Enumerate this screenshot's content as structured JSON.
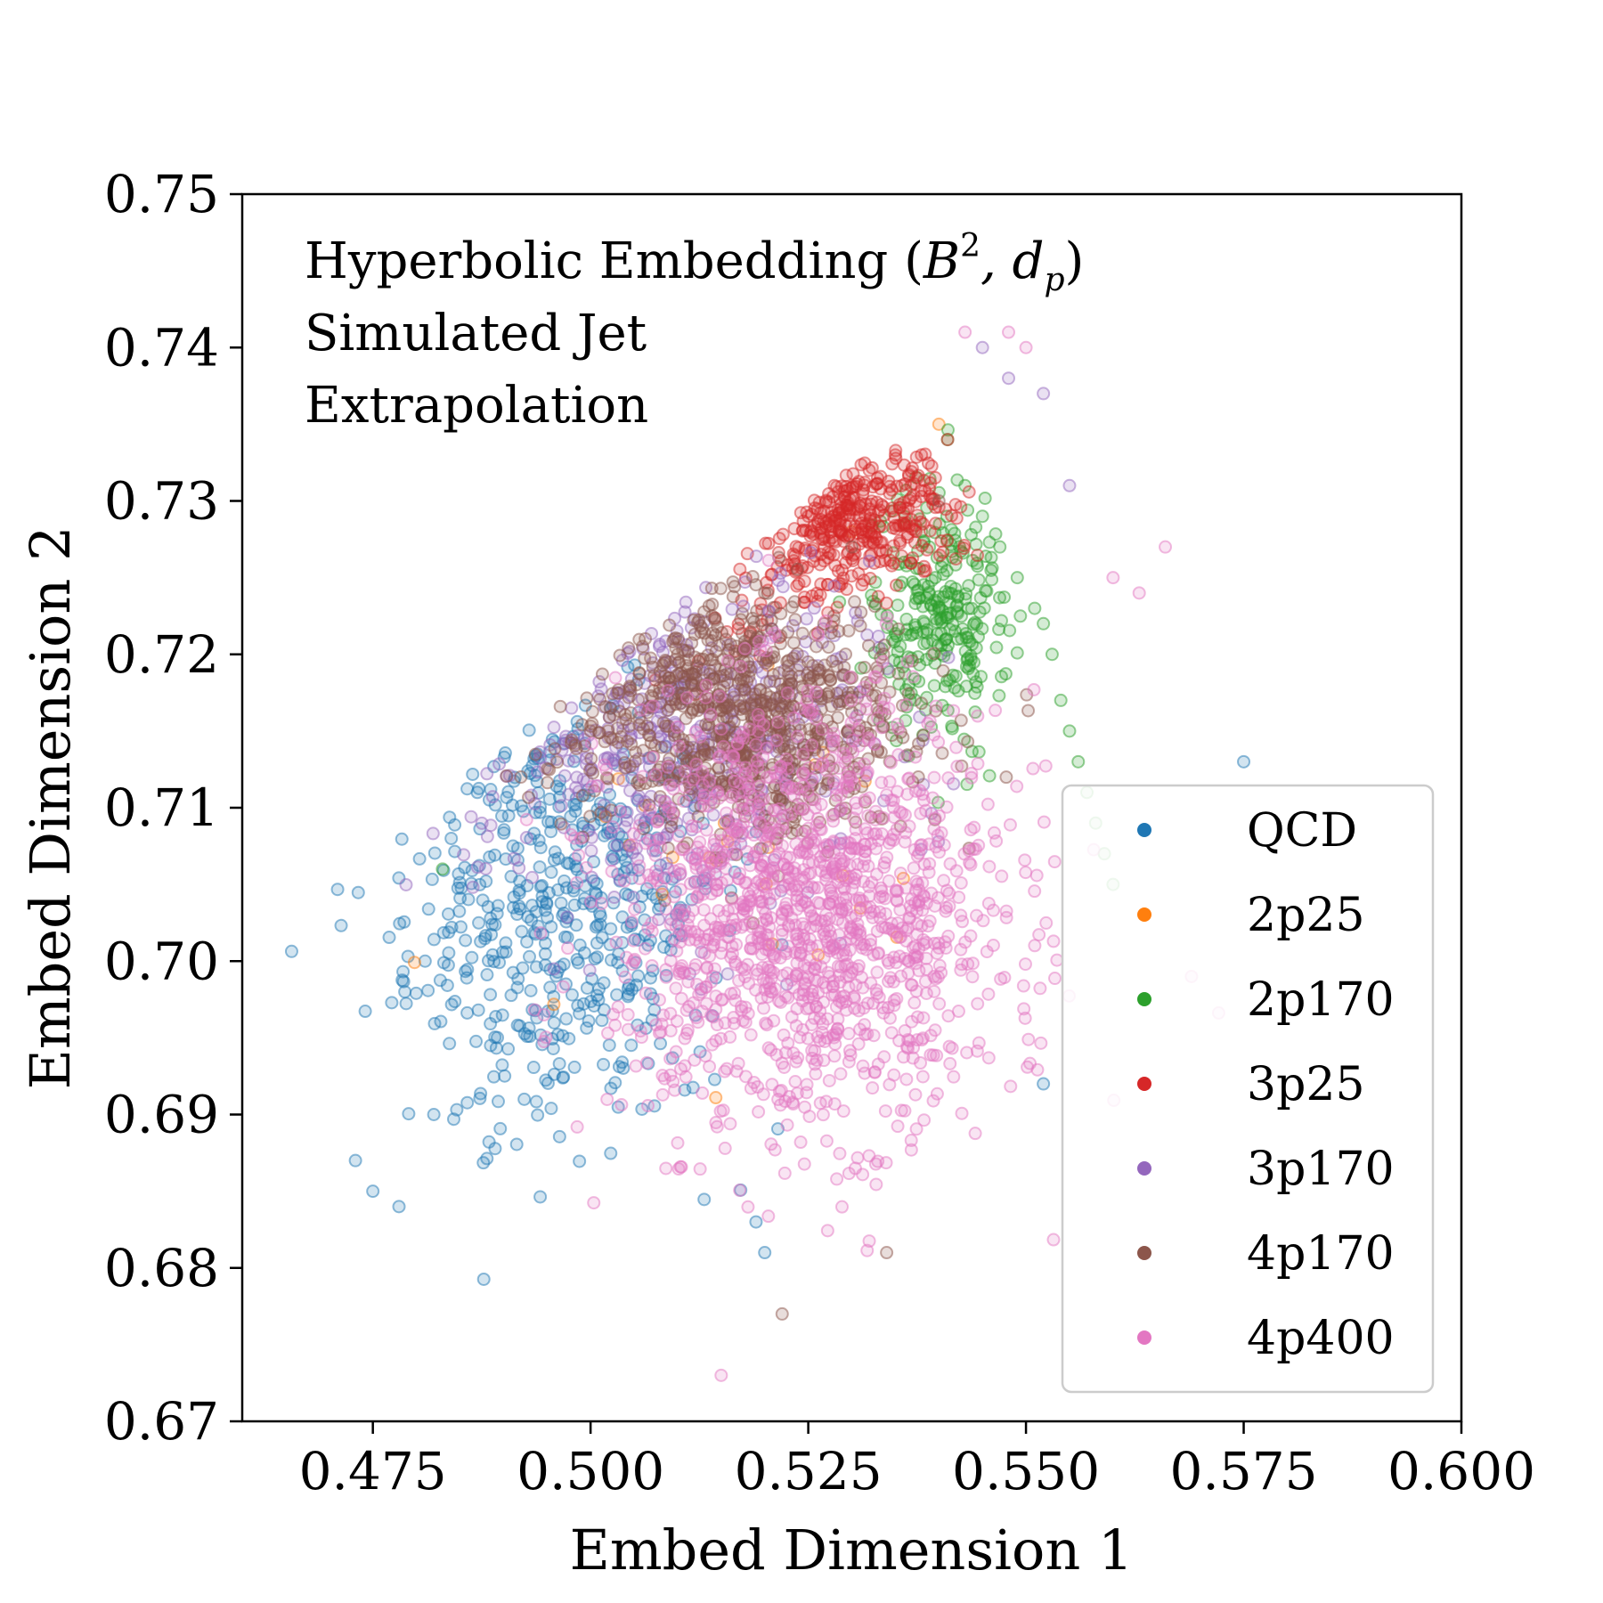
{
  "chart_data": {
    "type": "scatter",
    "xlabel": "Embed Dimension 1",
    "ylabel": "Embed Dimension 2",
    "xlim": [
      0.46,
      0.6
    ],
    "ylim": [
      0.67,
      0.75
    ],
    "xticks": [
      "0.475",
      "0.500",
      "0.525",
      "0.550",
      "0.575",
      "0.600"
    ],
    "yticks": [
      "0.67",
      "0.68",
      "0.69",
      "0.70",
      "0.71",
      "0.72",
      "0.73",
      "0.74",
      "0.75"
    ],
    "annotation": {
      "line1_text": "Hyperbolic Embedding (",
      "line1_b": "B",
      "line1_sup": "2",
      "line1_comma": ", d",
      "line1_sub": "p",
      "line1_close": ")",
      "line2": "Simulated Jet",
      "line3": "Extrapolation"
    },
    "legend_position": "lower right",
    "grid": false,
    "series": [
      {
        "name": "QCD",
        "color": "#1f77b4",
        "cx": 0.497,
        "cy": 0.703,
        "sx": 0.009,
        "sy": 0.007,
        "extra": [
          [
            0.473,
            0.687
          ],
          [
            0.475,
            0.685
          ],
          [
            0.478,
            0.684
          ],
          [
            0.482,
            0.69
          ],
          [
            0.481,
            0.7
          ],
          [
            0.484,
            0.708
          ],
          [
            0.487,
            0.711
          ],
          [
            0.575,
            0.713
          ],
          [
            0.552,
            0.692
          ],
          [
            0.519,
            0.683
          ],
          [
            0.52,
            0.681
          ]
        ]
      },
      {
        "name": "2p25",
        "color": "#ff7f0e",
        "cx": 0.52,
        "cy": 0.705,
        "sx": 0.01,
        "sy": 0.006,
        "extra": [
          [
            0.54,
            0.735
          ],
          [
            0.53,
            0.728
          ]
        ]
      },
      {
        "name": "2p170",
        "color": "#2ca02c",
        "cx": 0.54,
        "cy": 0.722,
        "sx": 0.004,
        "sy": 0.004,
        "extra": [
          [
            0.541,
            0.734
          ],
          [
            0.543,
            0.731
          ],
          [
            0.545,
            0.729
          ],
          [
            0.547,
            0.727
          ],
          [
            0.549,
            0.725
          ],
          [
            0.551,
            0.723
          ],
          [
            0.552,
            0.722
          ],
          [
            0.553,
            0.72
          ],
          [
            0.554,
            0.717
          ],
          [
            0.555,
            0.715
          ],
          [
            0.556,
            0.713
          ],
          [
            0.557,
            0.711
          ],
          [
            0.558,
            0.709
          ],
          [
            0.559,
            0.707
          ],
          [
            0.56,
            0.705
          ],
          [
            0.538,
            0.728
          ],
          [
            0.536,
            0.726
          ],
          [
            0.483,
            0.706
          ]
        ]
      },
      {
        "name": "3p25",
        "color": "#d62728",
        "cx": 0.53,
        "cy": 0.729,
        "sx": 0.006,
        "sy": 0.002,
        "extra": [
          [
            0.541,
            0.734
          ],
          [
            0.538,
            0.733
          ],
          [
            0.535,
            0.733
          ],
          [
            0.532,
            0.732
          ],
          [
            0.528,
            0.731
          ],
          [
            0.525,
            0.729
          ]
        ]
      },
      {
        "name": "3p170",
        "color": "#9467bd",
        "cx": 0.512,
        "cy": 0.714,
        "sx": 0.01,
        "sy": 0.006,
        "extra": [
          [
            0.548,
            0.738
          ],
          [
            0.545,
            0.74
          ],
          [
            0.552,
            0.737
          ],
          [
            0.555,
            0.731
          ]
        ]
      },
      {
        "name": "4p170",
        "color": "#8c564b",
        "cx": 0.518,
        "cy": 0.716,
        "sx": 0.009,
        "sy": 0.004,
        "extra": [
          [
            0.492,
            0.712
          ],
          [
            0.5,
            0.715
          ],
          [
            0.51,
            0.72
          ],
          [
            0.52,
            0.724
          ],
          [
            0.53,
            0.727
          ],
          [
            0.54,
            0.73
          ],
          [
            0.522,
            0.677
          ],
          [
            0.534,
            0.681
          ]
        ]
      },
      {
        "name": "4p400",
        "color": "#e377c2",
        "cx": 0.525,
        "cy": 0.703,
        "sx": 0.011,
        "sy": 0.007,
        "extra": [
          [
            0.515,
            0.673
          ],
          [
            0.548,
            0.741
          ],
          [
            0.55,
            0.74
          ],
          [
            0.543,
            0.741
          ],
          [
            0.56,
            0.725
          ],
          [
            0.566,
            0.727
          ],
          [
            0.569,
            0.699
          ],
          [
            0.563,
            0.724
          ]
        ]
      }
    ]
  }
}
